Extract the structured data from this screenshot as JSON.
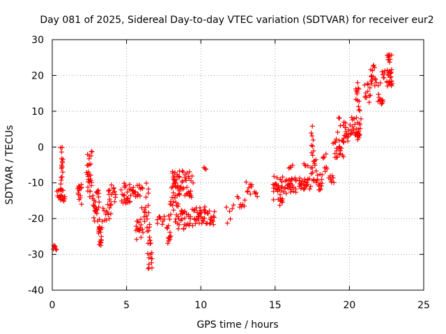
{
  "chart_data": {
    "type": "scatter",
    "title": "Day 081 of 2025, Sidereal Day-to-day VTEC variation (SDTVAR) for receiver eur2",
    "xlabel": "GPS time / hours",
    "ylabel": "SDTVAR / TECUs",
    "xlim": [
      0,
      25
    ],
    "ylim": [
      -40,
      30
    ],
    "xticks": [
      0,
      5,
      10,
      15,
      20,
      25
    ],
    "yticks": [
      -40,
      -30,
      -20,
      -10,
      0,
      10,
      20,
      30
    ],
    "grid": true,
    "marker": "+",
    "color": "#ff0000",
    "series": [
      {
        "name": "SDTVAR",
        "clusters": [
          {
            "x0": 0.05,
            "x1": 0.3,
            "y0": -29,
            "y1": -27.5,
            "n": 8
          },
          {
            "x0": 0.3,
            "x1": 0.9,
            "y0": -15.5,
            "y1": -11.5,
            "n": 20
          },
          {
            "x0": 0.55,
            "x1": 0.72,
            "y0": -12,
            "y1": 0.5,
            "n": 18
          },
          {
            "x0": 1.7,
            "x1": 2.0,
            "y0": -16,
            "y1": -10.5,
            "n": 16
          },
          {
            "x0": 2.3,
            "x1": 2.7,
            "y0": -14,
            "y1": -1,
            "n": 28
          },
          {
            "x0": 2.7,
            "x1": 3.2,
            "y0": -21,
            "y1": -12,
            "n": 28
          },
          {
            "x0": 3.1,
            "x1": 3.35,
            "y0": -28,
            "y1": -22,
            "n": 18
          },
          {
            "x0": 3.35,
            "x1": 4.0,
            "y0": -21,
            "y1": -16,
            "n": 14
          },
          {
            "x0": 3.7,
            "x1": 4.3,
            "y0": -16,
            "y1": -10.5,
            "n": 16
          },
          {
            "x0": 4.6,
            "x1": 5.4,
            "y0": -16,
            "y1": -10,
            "n": 26
          },
          {
            "x0": 5.4,
            "x1": 6.0,
            "y0": -14,
            "y1": -10.5,
            "n": 14
          },
          {
            "x0": 5.6,
            "x1": 6.0,
            "y0": -26,
            "y1": -20,
            "n": 16
          },
          {
            "x0": 6.0,
            "x1": 6.6,
            "y0": -24,
            "y1": -9,
            "n": 24
          },
          {
            "x0": 6.4,
            "x1": 6.75,
            "y0": -34,
            "y1": -25,
            "n": 18
          },
          {
            "x0": 7.0,
            "x1": 7.6,
            "y0": -22,
            "y1": -19,
            "n": 10
          },
          {
            "x0": 7.7,
            "x1": 8.0,
            "y0": -27,
            "y1": -22,
            "n": 12
          },
          {
            "x0": 7.8,
            "x1": 8.5,
            "y0": -21,
            "y1": -14,
            "n": 18
          },
          {
            "x0": 8.0,
            "x1": 8.7,
            "y0": -14,
            "y1": -6.5,
            "n": 34
          },
          {
            "x0": 8.3,
            "x1": 9.5,
            "y0": -23,
            "y1": -17,
            "n": 30
          },
          {
            "x0": 8.7,
            "x1": 9.5,
            "y0": -14,
            "y1": -6,
            "n": 28
          },
          {
            "x0": 9.5,
            "x1": 10.4,
            "y0": -21.5,
            "y1": -16.5,
            "n": 32
          },
          {
            "x0": 10.2,
            "x1": 10.35,
            "y0": -6.5,
            "y1": -5.5,
            "n": 3
          },
          {
            "x0": 10.4,
            "x1": 11.0,
            "y0": -22,
            "y1": -17.5,
            "n": 14
          },
          {
            "x0": 11.7,
            "x1": 12.2,
            "y0": -21.5,
            "y1": -16,
            "n": 6
          },
          {
            "x0": 12.4,
            "x1": 13.0,
            "y0": -17,
            "y1": -13.5,
            "n": 8
          },
          {
            "x0": 13.0,
            "x1": 13.5,
            "y0": -14,
            "y1": -9.5,
            "n": 8
          },
          {
            "x0": 13.6,
            "x1": 13.8,
            "y0": -14,
            "y1": -12.5,
            "n": 4
          },
          {
            "x0": 14.8,
            "x1": 15.6,
            "y0": -15,
            "y1": -8,
            "n": 28
          },
          {
            "x0": 15.3,
            "x1": 15.5,
            "y0": -17,
            "y1": -13.5,
            "n": 6
          },
          {
            "x0": 15.6,
            "x1": 16.5,
            "y0": -13,
            "y1": -8.5,
            "n": 28
          },
          {
            "x0": 15.9,
            "x1": 16.2,
            "y0": -6,
            "y1": -4.5,
            "n": 4
          },
          {
            "x0": 16.5,
            "x1": 17.4,
            "y0": -12,
            "y1": -8.5,
            "n": 26
          },
          {
            "x0": 16.9,
            "x1": 17.2,
            "y0": -5.5,
            "y1": -4.5,
            "n": 4
          },
          {
            "x0": 17.4,
            "x1": 17.8,
            "y0": -10,
            "y1": -2,
            "n": 16
          },
          {
            "x0": 17.4,
            "x1": 17.6,
            "y0": -2,
            "y1": 6.5,
            "n": 8
          },
          {
            "x0": 17.8,
            "x1": 18.2,
            "y0": -12,
            "y1": -7.5,
            "n": 14
          },
          {
            "x0": 18.2,
            "x1": 18.5,
            "y0": -7,
            "y1": -1.5,
            "n": 8
          },
          {
            "x0": 18.6,
            "x1": 19.0,
            "y0": -10,
            "y1": -7.5,
            "n": 8
          },
          {
            "x0": 18.9,
            "x1": 19.7,
            "y0": -3,
            "y1": 2.5,
            "n": 24
          },
          {
            "x0": 19.2,
            "x1": 19.4,
            "y0": 4,
            "y1": 8.5,
            "n": 4
          },
          {
            "x0": 19.5,
            "x1": 20.0,
            "y0": 1,
            "y1": 7,
            "n": 16
          },
          {
            "x0": 20.0,
            "x1": 20.8,
            "y0": 3,
            "y1": 8.5,
            "n": 26
          },
          {
            "x0": 20.4,
            "x1": 20.7,
            "y0": 8,
            "y1": 19,
            "n": 14
          },
          {
            "x0": 20.5,
            "x1": 20.7,
            "y0": 2,
            "y1": 4,
            "n": 6
          },
          {
            "x0": 21.0,
            "x1": 21.5,
            "y0": 12,
            "y1": 19,
            "n": 14
          },
          {
            "x0": 21.4,
            "x1": 21.8,
            "y0": 17,
            "y1": 23.5,
            "n": 12
          },
          {
            "x0": 21.8,
            "x1": 22.1,
            "y0": 17,
            "y1": 18.5,
            "n": 3
          },
          {
            "x0": 21.9,
            "x1": 22.3,
            "y0": 12,
            "y1": 15,
            "n": 10
          },
          {
            "x0": 22.2,
            "x1": 22.4,
            "y0": 18,
            "y1": 22,
            "n": 6
          },
          {
            "x0": 22.5,
            "x1": 22.9,
            "y0": 17,
            "y1": 27,
            "n": 32
          }
        ]
      }
    ]
  }
}
